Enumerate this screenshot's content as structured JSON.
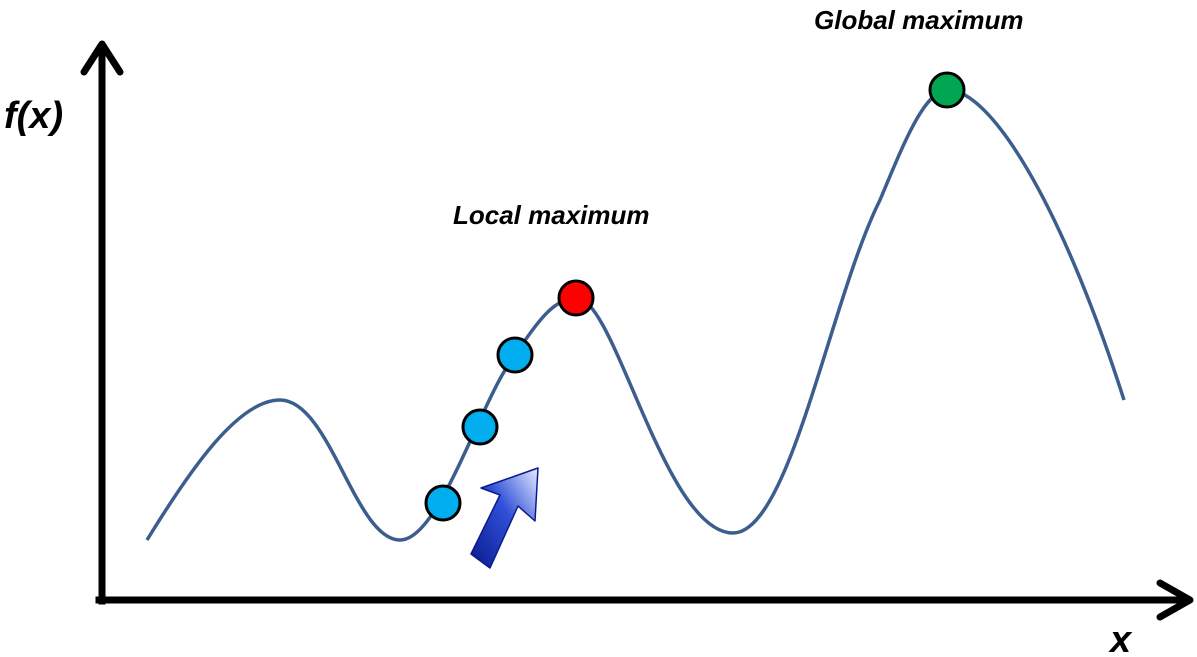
{
  "axes": {
    "y_label": "f(x)",
    "x_label": "x"
  },
  "annotations": {
    "local_max": "Local maximum",
    "global_max": "Global maximum"
  },
  "colors": {
    "axis": "#000000",
    "curve": "#3c5e8e",
    "step_point": "#00aeef",
    "local_max_point": "#ff0000",
    "global_max_point": "#00a651",
    "arrow_dark": "#0a1a8c",
    "arrow_light": "#e8ecff"
  },
  "markers": [
    {
      "name": "step-point-1",
      "kind": "step"
    },
    {
      "name": "step-point-2",
      "kind": "step"
    },
    {
      "name": "step-point-3",
      "kind": "step"
    },
    {
      "name": "local-maximum-point",
      "kind": "local_max"
    },
    {
      "name": "global-maximum-point",
      "kind": "global_max"
    }
  ],
  "icons": {
    "direction_arrow": "ascent-direction-arrow-icon"
  }
}
